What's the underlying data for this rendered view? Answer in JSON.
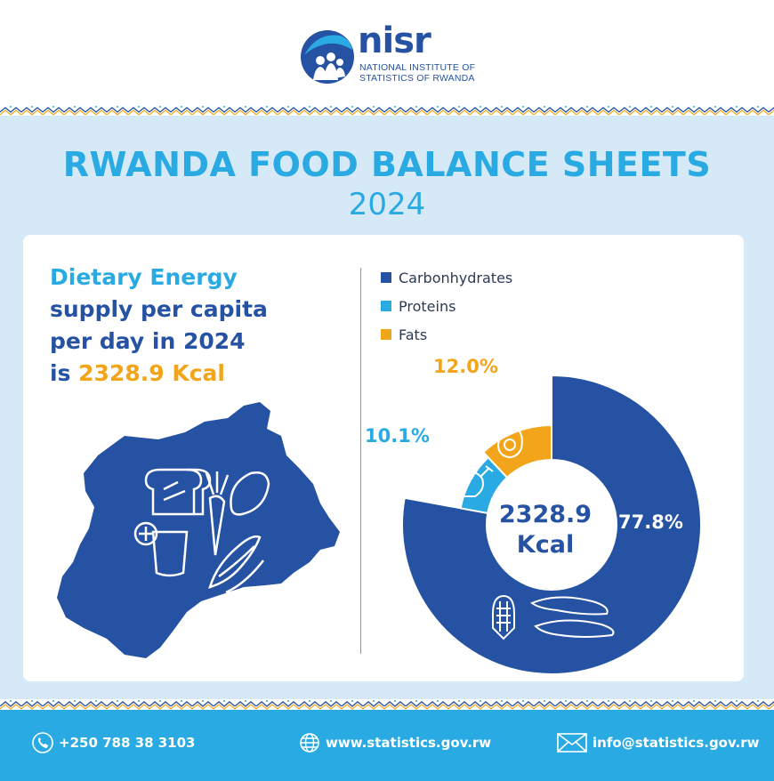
{
  "header": {
    "logo_name": "nisr",
    "logo_line1": "NATIONAL INSTITUTE OF",
    "logo_line2": "STATISTICS OF RWANDA"
  },
  "title": "RWANDA FOOD BALANCE SHEETS",
  "year": "2024",
  "statement": {
    "line1": "Dietary Energy",
    "line2": "supply per capita",
    "line3": "per day in 2024",
    "line4_prefix": "is ",
    "value": "2328.9 Kcal"
  },
  "colors": {
    "dark_blue": "#2652a3",
    "light_blue": "#2aaae2",
    "orange": "#f2a51a"
  },
  "chart_data": {
    "type": "pie",
    "title": "Dietary Energy supply per capita per day in 2024",
    "center_label_value": "2328.9",
    "center_label_unit": "Kcal",
    "categories": [
      "Carbonhydrates",
      "Proteins",
      "Fats"
    ],
    "values": [
      77.8,
      10.1,
      12.0
    ],
    "labels": [
      "77.8%",
      "10.1%",
      "12.0%"
    ],
    "colors": [
      "#2652a3",
      "#2aaae2",
      "#f2a51a"
    ],
    "legend_position": "top"
  },
  "footer": {
    "phone": "+250 788 38 3103",
    "website": "www.statistics.gov.rw",
    "email": "info@statistics.gov.rw"
  }
}
